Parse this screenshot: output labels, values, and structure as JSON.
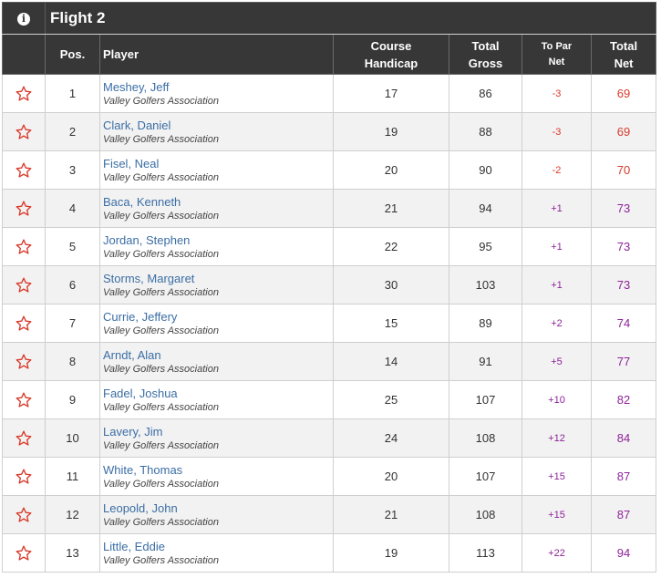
{
  "flight": {
    "title": "Flight 2",
    "info_icon": "info-icon"
  },
  "headers": {
    "pos": "Pos.",
    "player": "Player",
    "course_handicap_1": "Course",
    "course_handicap_2": "Handicap",
    "total_gross_1": "Total",
    "total_gross_2": "Gross",
    "to_par_net_1": "To Par",
    "to_par_net_2": "Net",
    "total_net_1": "Total",
    "total_net_2": "Net"
  },
  "colors": {
    "under_par": "#d93a2b",
    "over_par": "#8e2399",
    "player_link": "#3b6ea5",
    "header_bg": "#373737"
  },
  "rows": [
    {
      "pos": "1",
      "name": "Meshey, Jeff",
      "club": "Valley Golfers Association",
      "handicap": "17",
      "gross": "86",
      "to_par": "-3",
      "net": "69",
      "status": "under"
    },
    {
      "pos": "2",
      "name": "Clark, Daniel",
      "club": "Valley Golfers Association",
      "handicap": "19",
      "gross": "88",
      "to_par": "-3",
      "net": "69",
      "status": "under"
    },
    {
      "pos": "3",
      "name": "Fisel, Neal",
      "club": "Valley Golfers Association",
      "handicap": "20",
      "gross": "90",
      "to_par": "-2",
      "net": "70",
      "status": "under"
    },
    {
      "pos": "4",
      "name": "Baca, Kenneth",
      "club": "Valley Golfers Association",
      "handicap": "21",
      "gross": "94",
      "to_par": "+1",
      "net": "73",
      "status": "over"
    },
    {
      "pos": "5",
      "name": "Jordan, Stephen",
      "club": "Valley Golfers Association",
      "handicap": "22",
      "gross": "95",
      "to_par": "+1",
      "net": "73",
      "status": "over"
    },
    {
      "pos": "6",
      "name": "Storms, Margaret",
      "club": "Valley Golfers Association",
      "handicap": "30",
      "gross": "103",
      "to_par": "+1",
      "net": "73",
      "status": "over"
    },
    {
      "pos": "7",
      "name": "Currie, Jeffery",
      "club": "Valley Golfers Association",
      "handicap": "15",
      "gross": "89",
      "to_par": "+2",
      "net": "74",
      "status": "over"
    },
    {
      "pos": "8",
      "name": "Arndt, Alan",
      "club": "Valley Golfers Association",
      "handicap": "14",
      "gross": "91",
      "to_par": "+5",
      "net": "77",
      "status": "over"
    },
    {
      "pos": "9",
      "name": "Fadel, Joshua",
      "club": "Valley Golfers Association",
      "handicap": "25",
      "gross": "107",
      "to_par": "+10",
      "net": "82",
      "status": "over"
    },
    {
      "pos": "10",
      "name": "Lavery, Jim",
      "club": "Valley Golfers Association",
      "handicap": "24",
      "gross": "108",
      "to_par": "+12",
      "net": "84",
      "status": "over"
    },
    {
      "pos": "11",
      "name": "White, Thomas",
      "club": "Valley Golfers Association",
      "handicap": "20",
      "gross": "107",
      "to_par": "+15",
      "net": "87",
      "status": "over"
    },
    {
      "pos": "12",
      "name": "Leopold, John",
      "club": "Valley Golfers Association",
      "handicap": "21",
      "gross": "108",
      "to_par": "+15",
      "net": "87",
      "status": "over"
    },
    {
      "pos": "13",
      "name": "Little, Eddie",
      "club": "Valley Golfers Association",
      "handicap": "19",
      "gross": "113",
      "to_par": "+22",
      "net": "94",
      "status": "over"
    }
  ]
}
